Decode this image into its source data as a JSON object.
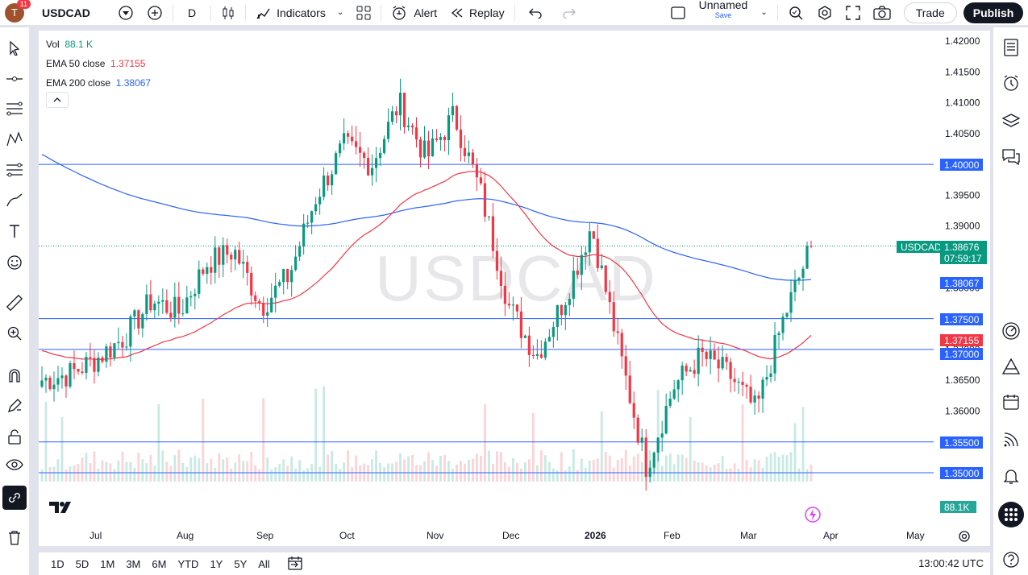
{
  "topbar": {
    "avatar_letter": "T",
    "notifications": "11",
    "symbol": "USDCAD",
    "interval": "D",
    "indicators_label": "Indicators",
    "alert_label": "Alert",
    "replay_label": "Replay",
    "layout_name": "Unnamed",
    "save_label": "Save",
    "trade_label": "Trade",
    "publish_label": "Publish"
  },
  "legend": {
    "vol_label": "Vol",
    "vol_value": "88.1 K",
    "ema50_label": "EMA 50 close",
    "ema50_value": "1.37155",
    "ema200_label": "EMA 200 close",
    "ema200_value": "1.38067"
  },
  "watermark": "USDCAD",
  "price_labels": {
    "symbol_tag": "USDCAD",
    "last_price": "1.38676",
    "countdown": "07:59:17",
    "ema200": "1.38067",
    "ema50": "1.37155",
    "level_1": "1.40000",
    "level_2": "1.37500",
    "level_3": "1.37000",
    "level_4": "1.35500",
    "level_5": "1.35000",
    "volume": "88.1K"
  },
  "colors": {
    "up": "#089981",
    "down": "#f23645",
    "ema50": "#f23645",
    "ema200": "#2962ff",
    "hline": "#2962ff"
  },
  "chart_data": {
    "type": "candlestick",
    "symbol": "USDCAD",
    "interval": "1D",
    "y_ticks": [
      "1.42000",
      "1.41500",
      "1.41000",
      "1.40500",
      "1.40000",
      "1.39500",
      "1.39000",
      "1.38500",
      "1.38000",
      "1.37500",
      "1.37000",
      "1.36500",
      "1.36000",
      "1.35500",
      "1.35000"
    ],
    "x_ticks": [
      "Jul",
      "Aug",
      "Sep",
      "Oct",
      "Nov",
      "Dec",
      "2026",
      "Feb",
      "Mar",
      "Apr",
      "May"
    ],
    "ylim": [
      1.348,
      1.422
    ],
    "horizontal_lines": [
      1.4,
      1.375,
      1.37,
      1.355,
      1.35
    ],
    "last_close": 1.38676,
    "ema50_last": 1.37155,
    "ema200_last": 1.38067,
    "volume_last": "88.1K",
    "close_path": [
      {
        "month": "Jun",
        "close": 1.365
      },
      {
        "month": "Jul-start",
        "close": 1.366
      },
      {
        "month": "Jul-mid",
        "close": 1.3685
      },
      {
        "month": "Jul-late",
        "close": 1.372
      },
      {
        "month": "Aug-start",
        "close": 1.378
      },
      {
        "month": "Aug-mid",
        "close": 1.376
      },
      {
        "month": "Aug-late",
        "close": 1.384
      },
      {
        "month": "Sep-start",
        "close": 1.386
      },
      {
        "month": "Sep-mid",
        "close": 1.377
      },
      {
        "month": "Sep-late",
        "close": 1.382
      },
      {
        "month": "Oct-start",
        "close": 1.395
      },
      {
        "month": "Oct-mid",
        "close": 1.403
      },
      {
        "month": "Oct-late",
        "close": 1.4
      },
      {
        "month": "Nov-start",
        "close": 1.41
      },
      {
        "month": "Nov-mid",
        "close": 1.401
      },
      {
        "month": "Nov-late",
        "close": 1.408
      },
      {
        "month": "Dec-start",
        "close": 1.395
      },
      {
        "month": "Dec-mid",
        "close": 1.377
      },
      {
        "month": "Dec-late",
        "close": 1.369
      },
      {
        "month": "Jan-start",
        "close": 1.378
      },
      {
        "month": "Jan-mid",
        "close": 1.39
      },
      {
        "month": "Jan-late",
        "close": 1.37
      },
      {
        "month": "Feb-start",
        "close": 1.351
      },
      {
        "month": "Feb-mid",
        "close": 1.364
      },
      {
        "month": "Feb-late",
        "close": 1.369
      },
      {
        "month": "Mar-start",
        "close": 1.366
      },
      {
        "month": "Mar-mid",
        "close": 1.36
      },
      {
        "month": "Mar-late",
        "close": 1.375
      },
      {
        "month": "Apr-start",
        "close": 1.3868
      }
    ]
  },
  "periods": [
    "1D",
    "5D",
    "1M",
    "3M",
    "6M",
    "YTD",
    "1Y",
    "5Y",
    "All"
  ],
  "clock": "13:00:42 UTC"
}
